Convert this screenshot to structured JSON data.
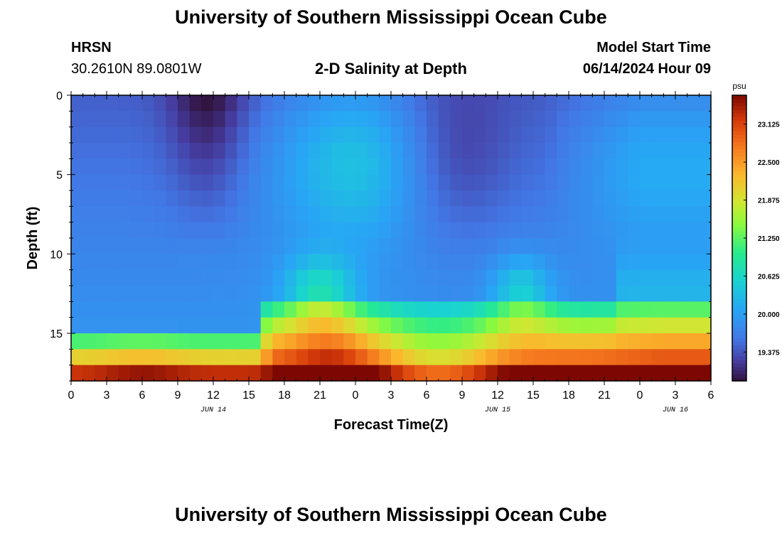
{
  "header": {
    "title": "University of Southern Mississippi Ocean Cube",
    "station": "HRSN",
    "coords": "30.2610N  89.0801W",
    "subtitle": "2-D Salinity at Depth",
    "model_start_label": "Model Start Time",
    "model_start_value": "06/14/2024 Hour 09"
  },
  "footer": {
    "title": "University of Southern Mississippi Ocean Cube"
  },
  "chart_data": {
    "type": "heatmap",
    "title": "2-D Salinity at Depth",
    "xlabel": "Forecast Time(Z)",
    "ylabel": "Depth (ft)",
    "x_tick_labels": [
      "0",
      "3",
      "6",
      "9",
      "12",
      "15",
      "18",
      "21",
      "0",
      "3",
      "6",
      "9",
      "12",
      "15",
      "18",
      "21",
      "0",
      "3",
      "6"
    ],
    "x_range_hours": [
      0,
      54
    ],
    "date_labels": [
      {
        "text": "JUN 14",
        "hour": 12
      },
      {
        "text": "JUN 15",
        "hour": 36
      },
      {
        "text": "JUN 16",
        "hour": 51
      }
    ],
    "y_tick_labels": [
      "0",
      "5",
      "10",
      "15"
    ],
    "y_tick_values": [
      0,
      5,
      10,
      15
    ],
    "y_range_ft": [
      0,
      18
    ],
    "colorbar": {
      "unit": "psu",
      "min": 18.9,
      "max": 23.6,
      "tick_values": [
        19.375,
        20.0,
        20.625,
        21.25,
        21.875,
        22.5,
        23.125
      ],
      "tick_labels": [
        "19.375",
        "20.000",
        "20.625",
        "21.250",
        "21.875",
        "22.500",
        "23.125"
      ]
    },
    "hour_step": 1,
    "depth_layers_ft": [
      0.5,
      1.5,
      2.5,
      3.5,
      4.5,
      5.5,
      6.5,
      7.5,
      8.5,
      9.5,
      10.5,
      11.5,
      12.5,
      13.5,
      14.5,
      15.5,
      16.5,
      17.5
    ],
    "note": "Salinity field sampled on 1-hour x 1-ft grid; low (~19.0 psu) near surface at hours 9-14, high (~23.5 psu) near bottom."
  },
  "colors": {
    "background": "#ffffff",
    "axis": "#000000"
  }
}
